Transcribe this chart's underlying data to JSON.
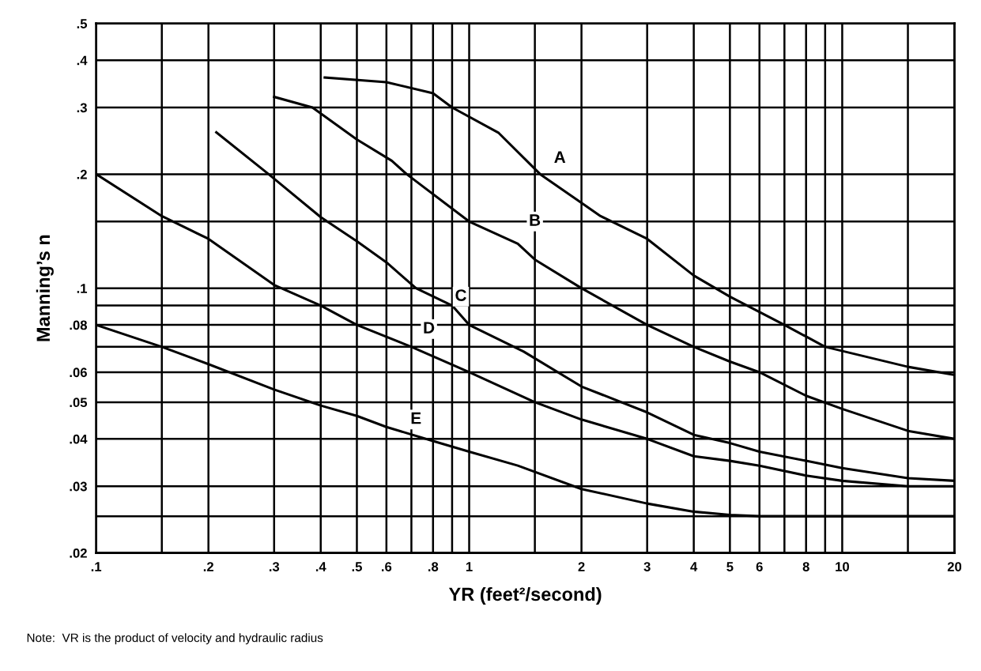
{
  "chart_data": {
    "type": "line",
    "xlabel": "YR (feet²/second)",
    "ylabel": "Manning’s n",
    "log": "xy",
    "grid": true,
    "marker": "none",
    "line_style": "solid",
    "xlim": [
      0.1,
      20
    ],
    "ylim": [
      0.02,
      0.5
    ],
    "xticks": [
      {
        "value": 0.1,
        "label": ".1"
      },
      {
        "value": 0.15,
        "label": null
      },
      {
        "value": 0.2,
        "label": ".2"
      },
      {
        "value": 0.3,
        "label": ".3"
      },
      {
        "value": 0.4,
        "label": ".4"
      },
      {
        "value": 0.5,
        "label": ".5"
      },
      {
        "value": 0.6,
        "label": ".6"
      },
      {
        "value": 0.7,
        "label": null
      },
      {
        "value": 0.8,
        "label": ".8"
      },
      {
        "value": 0.9,
        "label": null
      },
      1,
      {
        "value": 1.5,
        "label": null
      },
      2,
      3,
      4,
      5,
      6,
      {
        "value": 7,
        "label": null
      },
      8,
      {
        "value": 9,
        "label": null
      },
      10,
      {
        "value": 15,
        "label": null
      },
      20
    ],
    "yticks": [
      {
        "value": 0.02,
        "label": ".02"
      },
      {
        "value": 0.025,
        "label": null
      },
      {
        "value": 0.03,
        "label": ".03"
      },
      {
        "value": 0.04,
        "label": ".04"
      },
      {
        "value": 0.05,
        "label": ".05"
      },
      {
        "value": 0.06,
        "label": ".06"
      },
      {
        "value": 0.07,
        "label": null
      },
      {
        "value": 0.08,
        "label": ".08"
      },
      {
        "value": 0.09,
        "label": null
      },
      {
        "value": 0.1,
        "label": ".1"
      },
      {
        "value": 0.15,
        "label": null
      },
      {
        "value": 0.2,
        "label": ".2"
      },
      {
        "value": 0.3,
        "label": ".3"
      },
      {
        "value": 0.4,
        "label": ".4"
      },
      {
        "value": 0.5,
        "label": ".5"
      }
    ],
    "series": [
      {
        "color": "#000000",
        "x": [
          0.41,
          0.6,
          0.8,
          0.9,
          1.2,
          1.55,
          2.25,
          3,
          4,
          5,
          7,
          9,
          15,
          20
        ],
        "values": [
          0.36,
          0.35,
          0.327,
          0.3,
          0.257,
          0.2,
          0.155,
          0.135,
          0.108,
          0.095,
          0.08,
          0.07,
          0.062,
          0.059
        ]
      },
      {
        "color": "#000000",
        "x": [
          0.3,
          0.38,
          0.5,
          0.62,
          0.68,
          1,
          1.35,
          1.5,
          2,
          3,
          4,
          5,
          6,
          8,
          10,
          15,
          20
        ],
        "values": [
          0.32,
          0.3,
          0.247,
          0.217,
          0.2,
          0.15,
          0.131,
          0.119,
          0.1,
          0.08,
          0.07,
          0.064,
          0.06,
          0.052,
          0.048,
          0.042,
          0.04
        ]
      },
      {
        "color": "#000000",
        "x": [
          0.21,
          0.29,
          0.4,
          0.5,
          0.6,
          0.72,
          0.9,
          1,
          1.4,
          2,
          3,
          4,
          5,
          6,
          8,
          10,
          15,
          20
        ],
        "values": [
          0.258,
          0.2,
          0.154,
          0.133,
          0.117,
          0.1,
          0.09,
          0.08,
          0.068,
          0.055,
          0.047,
          0.041,
          0.039,
          0.037,
          0.035,
          0.0335,
          0.0315,
          0.031
        ]
      },
      {
        "color": "#000000",
        "x": [
          0.1,
          0.15,
          0.2,
          0.3,
          0.4,
          0.5,
          0.7,
          1,
          1.5,
          2,
          3,
          4,
          5,
          6,
          8,
          10,
          15,
          20
        ],
        "values": [
          0.2,
          0.155,
          0.135,
          0.102,
          0.09,
          0.08,
          0.07,
          0.06,
          0.05,
          0.045,
          0.04,
          0.036,
          0.035,
          0.034,
          0.032,
          0.031,
          0.03,
          0.03
        ]
      },
      {
        "color": "#000000",
        "x": [
          0.1,
          0.15,
          0.2,
          0.3,
          0.4,
          0.5,
          0.6,
          0.8,
          1,
          1.35,
          2,
          3,
          4,
          5,
          6,
          8,
          10,
          15,
          20
        ],
        "values": [
          0.08,
          0.07,
          0.063,
          0.054,
          0.049,
          0.046,
          0.043,
          0.0395,
          0.037,
          0.034,
          0.0295,
          0.027,
          0.0257,
          0.0252,
          0.025,
          0.025,
          0.025,
          0.025,
          0.025
        ]
      }
    ],
    "annotations": [
      {
        "text": "A",
        "x": 1.75,
        "y": 0.22
      },
      {
        "text": "B",
        "x": 1.5,
        "y": 0.15
      },
      {
        "text": "C",
        "x": 0.95,
        "y": 0.095
      },
      {
        "text": "D",
        "x": 0.78,
        "y": 0.078
      },
      {
        "text": "E",
        "x": 0.72,
        "y": 0.045
      },
      "Note:  VR is the product of velocity and hydraulic radius"
    ]
  }
}
